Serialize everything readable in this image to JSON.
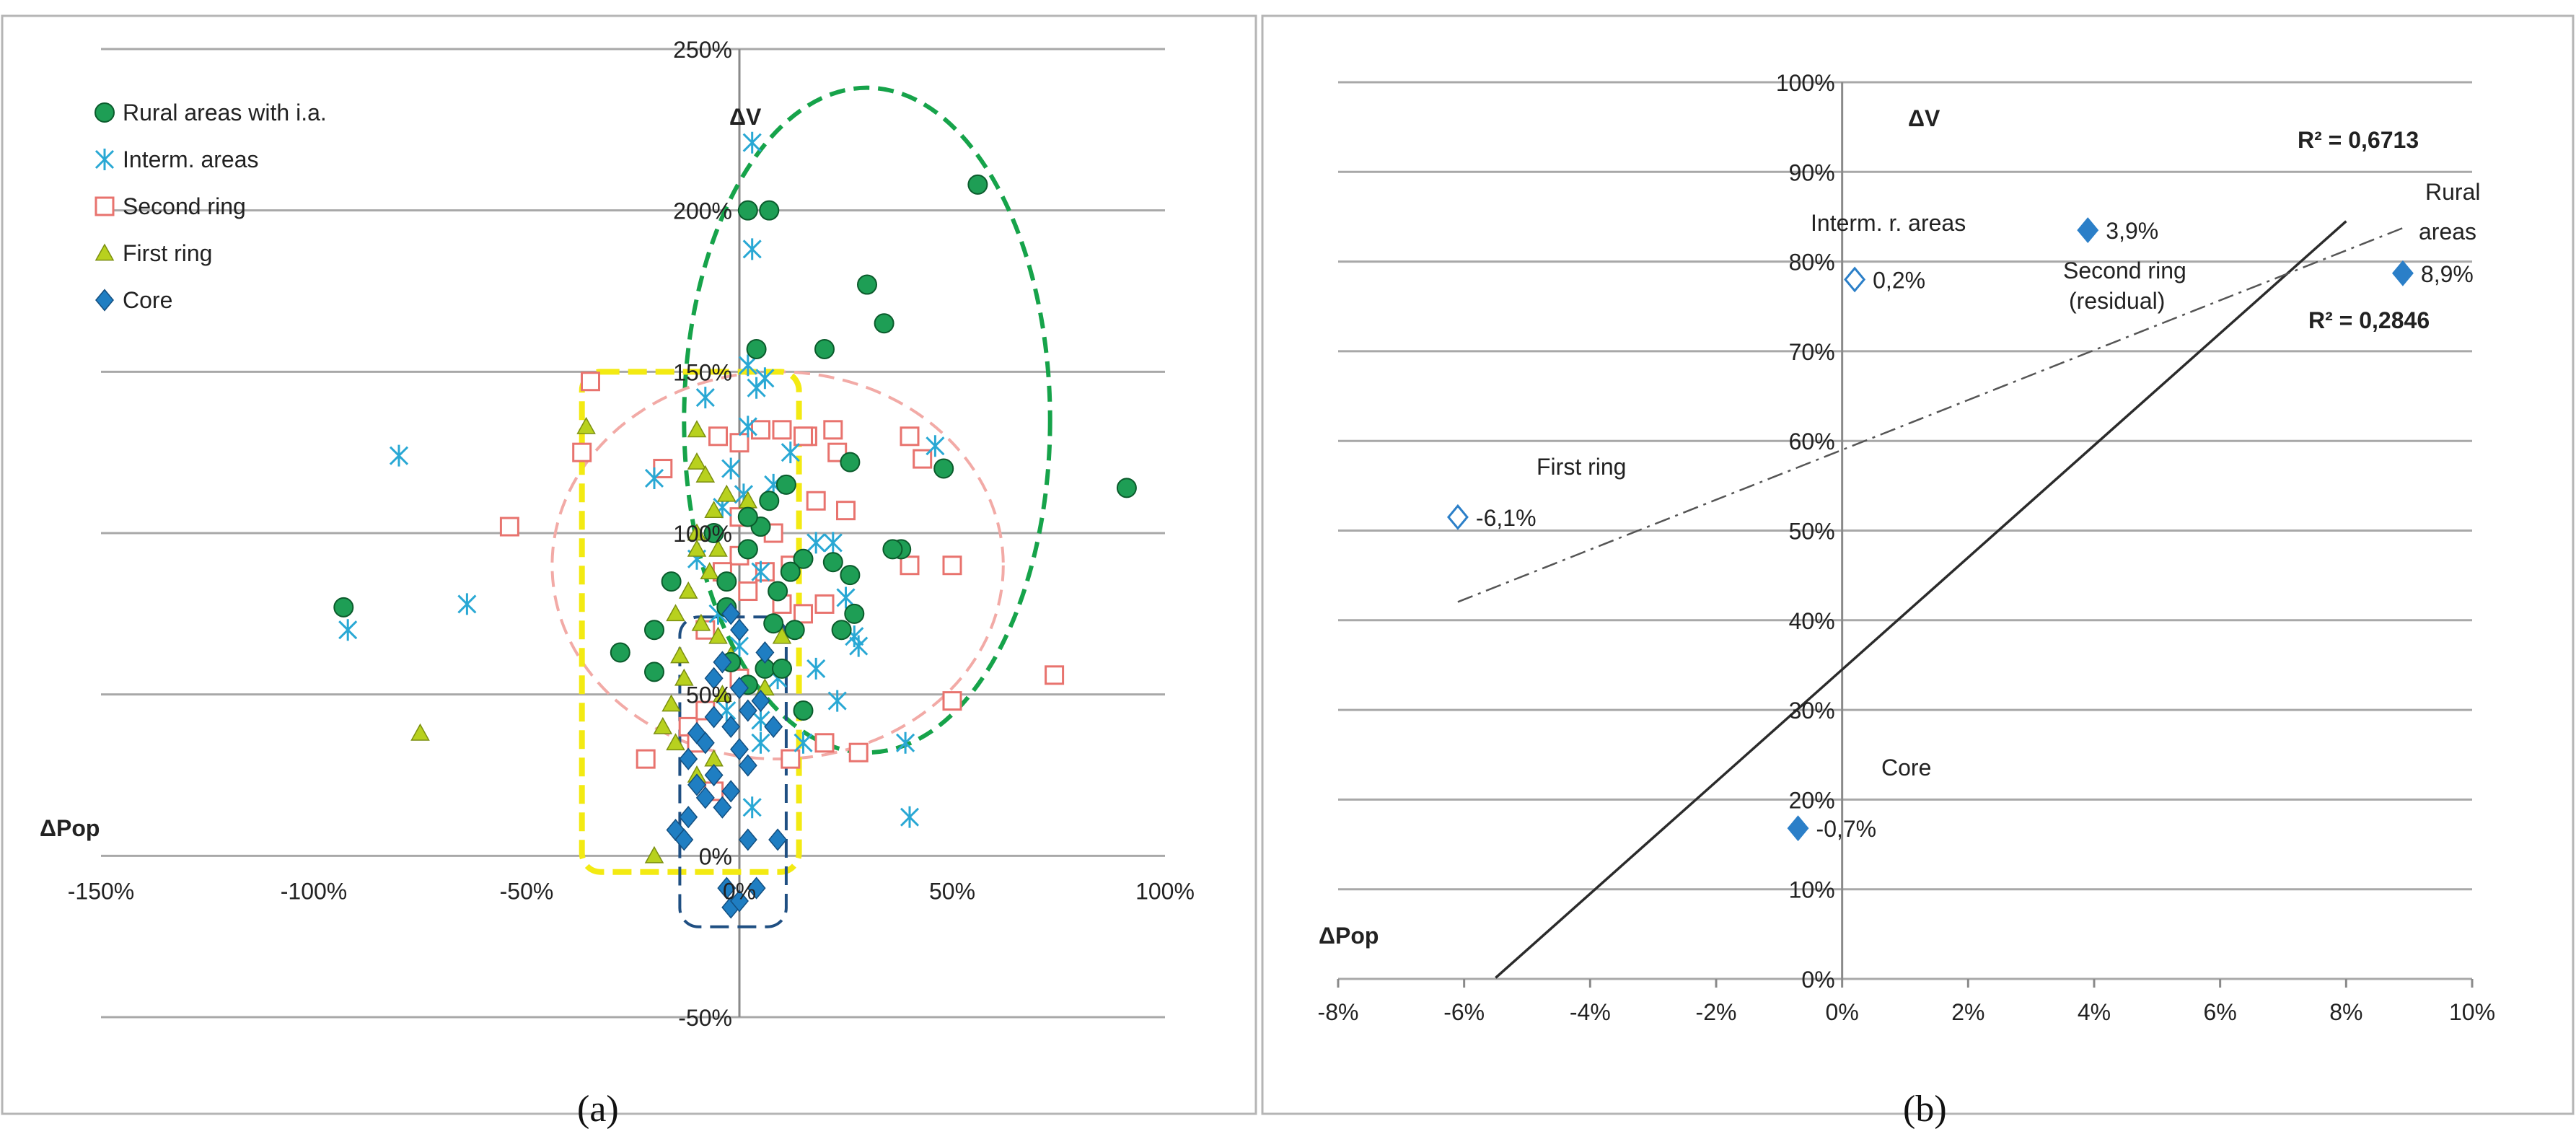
{
  "chart_data": [
    {
      "type": "scatter",
      "panel_label": "(a)",
      "xlabel": "ΔPop",
      "ylabel": "ΔV",
      "xlim": [
        -1.5,
        1.0
      ],
      "ylim": [
        -0.5,
        2.5
      ],
      "x_ticks": [
        "-150%",
        "-100%",
        "-50%",
        "0%",
        "50%",
        "100%"
      ],
      "y_ticks": [
        "-50%",
        "0%",
        "50%",
        "100%",
        "150%",
        "200%",
        "250%"
      ],
      "legend_position": "top-left",
      "colors": {
        "rural": "#1e9e55",
        "interm": "#29a8d4",
        "second": "#e8736e",
        "first": "#b8d11e",
        "core": "#1f7ec2"
      },
      "series": [
        {
          "name": "Rural areas with i.a.",
          "key": "rural",
          "points": [
            [
              0.91,
              1.14
            ],
            [
              0.56,
              2.08
            ],
            [
              0.48,
              1.2
            ],
            [
              0.34,
              1.65
            ],
            [
              0.3,
              1.77
            ],
            [
              0.2,
              1.57
            ],
            [
              0.02,
              2.0
            ],
            [
              0.07,
              2.0
            ],
            [
              0.04,
              1.57
            ],
            [
              0.38,
              0.95
            ],
            [
              0.36,
              0.95
            ],
            [
              0.26,
              1.22
            ],
            [
              0.26,
              0.87
            ],
            [
              0.22,
              0.91
            ],
            [
              0.27,
              0.75
            ],
            [
              0.24,
              0.7
            ],
            [
              0.15,
              0.92
            ],
            [
              0.12,
              0.88
            ],
            [
              0.11,
              1.15
            ],
            [
              0.07,
              1.1
            ],
            [
              0.05,
              1.02
            ],
            [
              0.02,
              1.05
            ],
            [
              0.02,
              0.95
            ],
            [
              -0.03,
              0.85
            ],
            [
              -0.03,
              0.77
            ],
            [
              0.08,
              0.72
            ],
            [
              0.13,
              0.7
            ],
            [
              0.06,
              0.58
            ],
            [
              0.02,
              0.53
            ],
            [
              -0.02,
              0.6
            ],
            [
              0.1,
              0.58
            ],
            [
              0.15,
              0.45
            ],
            [
              -0.16,
              0.85
            ],
            [
              -0.2,
              0.7
            ],
            [
              -0.28,
              0.63
            ],
            [
              -0.2,
              0.57
            ],
            [
              -0.93,
              0.77
            ],
            [
              -0.06,
              1.0
            ],
            [
              0.02,
              0.95
            ],
            [
              0.09,
              0.82
            ]
          ]
        },
        {
          "name": "Interm. areas",
          "key": "interm",
          "points": [
            [
              0.03,
              2.21
            ],
            [
              0.03,
              1.88
            ],
            [
              0.02,
              1.52
            ],
            [
              0.04,
              1.45
            ],
            [
              0.06,
              1.48
            ],
            [
              -0.08,
              1.42
            ],
            [
              -0.8,
              1.24
            ],
            [
              -0.64,
              0.78
            ],
            [
              -0.92,
              0.7
            ],
            [
              -0.2,
              1.17
            ],
            [
              0.46,
              1.27
            ],
            [
              0.39,
              0.35
            ],
            [
              0.4,
              0.12
            ],
            [
              0.05,
              0.35
            ],
            [
              0.03,
              0.15
            ],
            [
              0.02,
              1.33
            ],
            [
              -0.02,
              1.2
            ],
            [
              0.08,
              1.15
            ],
            [
              0.05,
              0.88
            ],
            [
              0.09,
              0.55
            ],
            [
              0.15,
              0.35
            ],
            [
              0.18,
              0.58
            ],
            [
              0.23,
              0.48
            ],
            [
              0.28,
              0.65
            ],
            [
              0.27,
              0.68
            ],
            [
              0.25,
              0.8
            ],
            [
              0.22,
              0.97
            ],
            [
              0.18,
              0.97
            ],
            [
              0.12,
              1.25
            ],
            [
              -0.1,
              0.92
            ],
            [
              -0.05,
              0.75
            ],
            [
              0.0,
              0.65
            ],
            [
              -0.03,
              0.45
            ],
            [
              0.05,
              0.42
            ],
            [
              0.01,
              1.12
            ],
            [
              -0.04,
              1.08
            ]
          ]
        },
        {
          "name": "Second ring",
          "key": "second",
          "points": [
            [
              -0.35,
              1.47
            ],
            [
              -0.37,
              1.25
            ],
            [
              -0.54,
              1.02
            ],
            [
              0.74,
              0.56
            ],
            [
              0.5,
              0.48
            ],
            [
              0.4,
              1.3
            ],
            [
              0.43,
              1.23
            ],
            [
              0.4,
              0.9
            ],
            [
              0.5,
              0.9
            ],
            [
              0.28,
              0.32
            ],
            [
              0.2,
              0.35
            ],
            [
              0.16,
              1.3
            ],
            [
              0.22,
              1.32
            ],
            [
              0.23,
              1.25
            ],
            [
              0.25,
              1.07
            ],
            [
              0.18,
              1.1
            ],
            [
              0.15,
              1.3
            ],
            [
              0.1,
              1.32
            ],
            [
              0.05,
              1.32
            ],
            [
              0.0,
              1.28
            ],
            [
              -0.05,
              1.3
            ],
            [
              0.0,
              1.05
            ],
            [
              0.08,
              1.0
            ],
            [
              0.12,
              0.9
            ],
            [
              0.06,
              0.88
            ],
            [
              0.0,
              0.93
            ],
            [
              -0.04,
              0.88
            ],
            [
              0.02,
              0.82
            ],
            [
              0.1,
              0.78
            ],
            [
              0.15,
              0.75
            ],
            [
              0.2,
              0.78
            ],
            [
              0.0,
              0.55
            ],
            [
              -0.08,
              0.7
            ],
            [
              -0.12,
              0.4
            ],
            [
              -0.1,
              0.35
            ],
            [
              -0.08,
              0.45
            ],
            [
              -0.22,
              0.3
            ],
            [
              -0.06,
              0.2
            ],
            [
              0.12,
              0.3
            ],
            [
              -0.18,
              1.2
            ]
          ]
        },
        {
          "name": "First ring",
          "key": "first",
          "points": [
            [
              -0.36,
              1.33
            ],
            [
              -0.1,
              1.32
            ],
            [
              -0.1,
              1.22
            ],
            [
              -0.08,
              1.18
            ],
            [
              -0.03,
              1.12
            ],
            [
              -0.06,
              1.07
            ],
            [
              0.02,
              1.1
            ],
            [
              -0.1,
              0.95
            ],
            [
              -0.07,
              0.88
            ],
            [
              -0.12,
              0.82
            ],
            [
              -0.15,
              0.75
            ],
            [
              -0.09,
              0.72
            ],
            [
              -0.05,
              0.68
            ],
            [
              -0.02,
              0.62
            ],
            [
              -0.13,
              0.55
            ],
            [
              -0.16,
              0.47
            ],
            [
              -0.18,
              0.4
            ],
            [
              -0.15,
              0.35
            ],
            [
              -0.1,
              0.25
            ],
            [
              -0.04,
              0.5
            ],
            [
              0.06,
              0.52
            ],
            [
              0.1,
              0.68
            ],
            [
              -0.2,
              0.0
            ],
            [
              -0.75,
              0.38
            ],
            [
              -0.1,
              1.0
            ],
            [
              -0.05,
              0.95
            ],
            [
              -0.14,
              0.62
            ],
            [
              -0.06,
              0.3
            ]
          ]
        },
        {
          "name": "Core",
          "key": "core",
          "points": [
            [
              -0.02,
              0.75
            ],
            [
              0.0,
              0.7
            ],
            [
              -0.04,
              0.6
            ],
            [
              0.06,
              0.63
            ],
            [
              -0.06,
              0.55
            ],
            [
              0.0,
              0.52
            ],
            [
              0.05,
              0.48
            ],
            [
              -0.06,
              0.43
            ],
            [
              0.02,
              0.45
            ],
            [
              -0.1,
              0.38
            ],
            [
              -0.02,
              0.4
            ],
            [
              0.08,
              0.4
            ],
            [
              -0.08,
              0.35
            ],
            [
              0.0,
              0.33
            ],
            [
              -0.12,
              0.3
            ],
            [
              0.02,
              0.28
            ],
            [
              -0.06,
              0.25
            ],
            [
              -0.1,
              0.22
            ],
            [
              -0.02,
              0.2
            ],
            [
              -0.08,
              0.18
            ],
            [
              -0.12,
              0.12
            ],
            [
              -0.04,
              0.15
            ],
            [
              -0.15,
              0.08
            ],
            [
              -0.13,
              0.05
            ],
            [
              0.02,
              0.05
            ],
            [
              0.09,
              0.05
            ],
            [
              -0.03,
              -0.1
            ],
            [
              0.04,
              -0.1
            ],
            [
              -0.02,
              -0.16
            ],
            [
              0.0,
              -0.14
            ]
          ]
        }
      ],
      "regions": [
        {
          "color": "green",
          "style": "dashed ellipse",
          "cx": 0.3,
          "cy": 1.35,
          "rx": 0.43,
          "ry": 1.03
        },
        {
          "color": "pink",
          "style": "dashed ellipse",
          "cx": 0.09,
          "cy": 0.9,
          "rx": 0.53,
          "ry": 0.6
        },
        {
          "color": "yellow",
          "style": "dashed rounded rectangle",
          "x0": -0.37,
          "x1": 0.14,
          "y0": -0.05,
          "y1": 1.5
        },
        {
          "color": "navy",
          "style": "dashed rounded rectangle",
          "x0": -0.14,
          "x1": 0.11,
          "y0": -0.22,
          "y1": 0.74
        }
      ]
    },
    {
      "type": "scatter",
      "panel_label": "(b)",
      "xlabel": "ΔPop",
      "ylabel": "ΔV",
      "xlim": [
        -0.08,
        0.1
      ],
      "ylim": [
        0.0,
        1.0
      ],
      "x_ticks": [
        "-8%",
        "-6%",
        "-4%",
        "-2%",
        "0%",
        "2%",
        "4%",
        "6%",
        "8%",
        "10%"
      ],
      "y_ticks": [
        "0%",
        "10%",
        "20%",
        "30%",
        "40%",
        "50%",
        "60%",
        "70%",
        "80%",
        "90%",
        "100%"
      ],
      "marker_color": "#2b7fc8",
      "points": [
        {
          "label": "First ring",
          "value_label": "-6,1%",
          "x": -0.061,
          "y": 0.515,
          "filled": false
        },
        {
          "label": "Interm. r. areas",
          "value_label": "0,2%",
          "x": 0.002,
          "y": 0.78,
          "filled": false
        },
        {
          "label": "Second ring (residual)",
          "value_label": "3,9%",
          "x": 0.039,
          "y": 0.835,
          "filled": true
        },
        {
          "label": "Rural areas",
          "value_label": "8,9%",
          "x": 0.089,
          "y": 0.787,
          "filled": true
        },
        {
          "label": "Core",
          "value_label": "-0,7%",
          "x": -0.007,
          "y": 0.168,
          "filled": true
        }
      ],
      "trendlines": [
        {
          "style": "solid",
          "r2_label": "R² = 0,6713",
          "x_range": [
            -0.055,
            0.08
          ],
          "slope": 6.25,
          "intercept": 0.345
        },
        {
          "style": "dash-dot",
          "r2_label": "R² = 0,2846",
          "x_range": [
            -0.061,
            0.089
          ],
          "slope": 2.78,
          "intercept": 0.59
        }
      ]
    }
  ]
}
